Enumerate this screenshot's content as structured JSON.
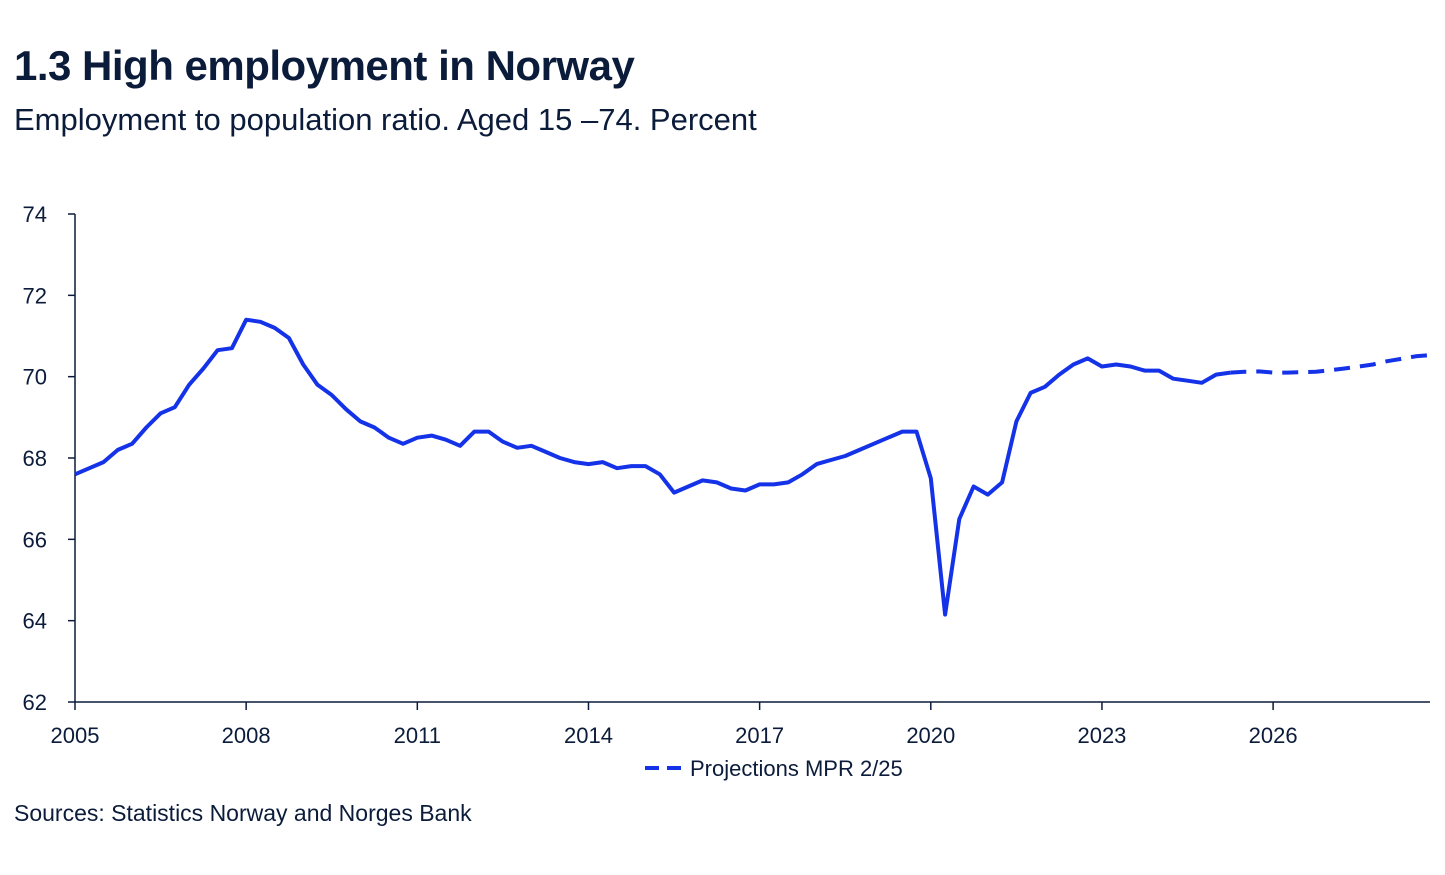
{
  "title": "1.3 High employment in Norway",
  "subtitle": "Employment to population ratio. Aged 15 –74. Percent",
  "source": "Sources: Statistics Norway and  Norges Bank",
  "colors": {
    "series": "#1432e8",
    "axis": "#0b1b3a",
    "text": "#0b1b3a"
  },
  "chart_data": {
    "type": "line",
    "title": "1.3 High employment in Norway",
    "subtitle": "Employment to population ratio. Aged 15 –74. Percent",
    "xlabel": "",
    "ylabel": "",
    "xlim": [
      2005,
      2028.75
    ],
    "ylim": [
      62,
      74
    ],
    "yticks": [
      62,
      64,
      66,
      68,
      70,
      72,
      74
    ],
    "xticks": [
      "2005",
      "2008",
      "2011",
      "2014",
      "2017",
      "2020",
      "2023",
      "2026"
    ],
    "grid": false,
    "legend": {
      "position": "bottom-center",
      "entries": [
        "Projections MPR 2/25"
      ]
    },
    "series": [
      {
        "style": "solid",
        "x": [
          2005.0,
          2005.25,
          2005.5,
          2005.75,
          2006.0,
          2006.25,
          2006.5,
          2006.75,
          2007.0,
          2007.25,
          2007.5,
          2007.75,
          2008.0,
          2008.25,
          2008.5,
          2008.75,
          2009.0,
          2009.25,
          2009.5,
          2009.75,
          2010.0,
          2010.25,
          2010.5,
          2010.75,
          2011.0,
          2011.25,
          2011.5,
          2011.75,
          2012.0,
          2012.25,
          2012.5,
          2012.75,
          2013.0,
          2013.25,
          2013.5,
          2013.75,
          2014.0,
          2014.25,
          2014.5,
          2014.75,
          2015.0,
          2015.25,
          2015.5,
          2015.75,
          2016.0,
          2016.25,
          2016.5,
          2016.75,
          2017.0,
          2017.25,
          2017.5,
          2017.75,
          2018.0,
          2018.25,
          2018.5,
          2018.75,
          2019.0,
          2019.25,
          2019.5,
          2019.75,
          2020.0,
          2020.25,
          2020.5,
          2020.75,
          2021.0,
          2021.25,
          2021.5,
          2021.75,
          2022.0,
          2022.25,
          2022.5,
          2022.75,
          2023.0,
          2023.25,
          2023.5,
          2023.75,
          2024.0,
          2024.25,
          2024.5,
          2024.75,
          2025.0,
          2025.25
        ],
        "values": [
          67.6,
          67.75,
          67.9,
          68.2,
          68.35,
          68.75,
          69.1,
          69.25,
          69.8,
          70.2,
          70.65,
          70.7,
          71.4,
          71.35,
          71.2,
          70.95,
          70.3,
          69.8,
          69.55,
          69.2,
          68.9,
          68.75,
          68.5,
          68.35,
          68.5,
          68.55,
          68.45,
          68.3,
          68.65,
          68.65,
          68.4,
          68.25,
          68.3,
          68.15,
          68.0,
          67.9,
          67.85,
          67.9,
          67.75,
          67.8,
          67.8,
          67.6,
          67.15,
          67.3,
          67.45,
          67.4,
          67.25,
          67.2,
          67.35,
          67.35,
          67.4,
          67.6,
          67.85,
          67.95,
          68.05,
          68.2,
          68.35,
          68.5,
          68.65,
          68.65,
          67.5,
          64.15,
          66.5,
          67.3,
          67.1,
          67.4,
          68.9,
          69.6,
          69.75,
          70.05,
          70.3,
          70.45,
          70.25,
          70.3,
          70.25,
          70.15,
          70.15,
          69.95,
          69.9,
          69.85,
          70.05,
          70.1
        ]
      },
      {
        "name": "Projections MPR 2/25",
        "style": "dashed",
        "x": [
          2025.25,
          2025.5,
          2025.75,
          2026.0,
          2026.25,
          2026.5,
          2026.75,
          2027.0,
          2027.25,
          2027.5,
          2027.75,
          2028.0,
          2028.25,
          2028.5,
          2028.75
        ],
        "values": [
          70.1,
          70.12,
          70.13,
          70.1,
          70.1,
          70.11,
          70.12,
          70.16,
          70.2,
          70.25,
          70.3,
          70.38,
          70.44,
          70.5,
          70.53
        ]
      }
    ]
  }
}
